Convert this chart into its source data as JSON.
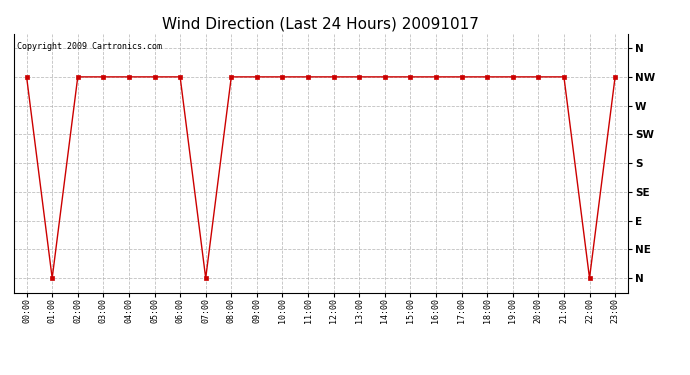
{
  "title": "Wind Direction (Last 24 Hours) 20091017",
  "copyright": "Copyright 2009 Cartronics.com",
  "x_labels": [
    "00:00",
    "01:00",
    "02:00",
    "03:00",
    "04:00",
    "05:00",
    "06:00",
    "07:00",
    "08:00",
    "09:00",
    "10:00",
    "11:00",
    "12:00",
    "13:00",
    "14:00",
    "15:00",
    "16:00",
    "17:00",
    "18:00",
    "19:00",
    "20:00",
    "21:00",
    "22:00",
    "23:00"
  ],
  "x_values": [
    0,
    1,
    2,
    3,
    4,
    5,
    6,
    7,
    8,
    9,
    10,
    11,
    12,
    13,
    14,
    15,
    16,
    17,
    18,
    19,
    20,
    21,
    22,
    23
  ],
  "y_ticks": [
    0,
    1,
    2,
    3,
    4,
    5,
    6,
    7,
    8
  ],
  "y_labels": [
    "N",
    "NE",
    "E",
    "SE",
    "S",
    "SW",
    "W",
    "NW",
    "N"
  ],
  "data_points": [
    [
      0,
      7
    ],
    [
      1,
      0
    ],
    [
      2,
      7
    ],
    [
      3,
      7
    ],
    [
      4,
      7
    ],
    [
      5,
      7
    ],
    [
      6,
      7
    ],
    [
      7,
      0
    ],
    [
      8,
      7
    ],
    [
      9,
      7
    ],
    [
      10,
      7
    ],
    [
      11,
      7
    ],
    [
      12,
      7
    ],
    [
      13,
      7
    ],
    [
      14,
      7
    ],
    [
      15,
      7
    ],
    [
      16,
      7
    ],
    [
      17,
      7
    ],
    [
      18,
      7
    ],
    [
      19,
      7
    ],
    [
      20,
      7
    ],
    [
      21,
      7
    ],
    [
      22,
      0
    ],
    [
      23,
      7
    ]
  ],
  "line_color": "#cc0000",
  "marker": "s",
  "marker_size": 2.5,
  "background_color": "#ffffff",
  "grid_color": "#b0b0b0",
  "title_fontsize": 11,
  "copyright_fontsize": 6,
  "tick_fontsize": 6,
  "ytick_fontsize": 7.5
}
